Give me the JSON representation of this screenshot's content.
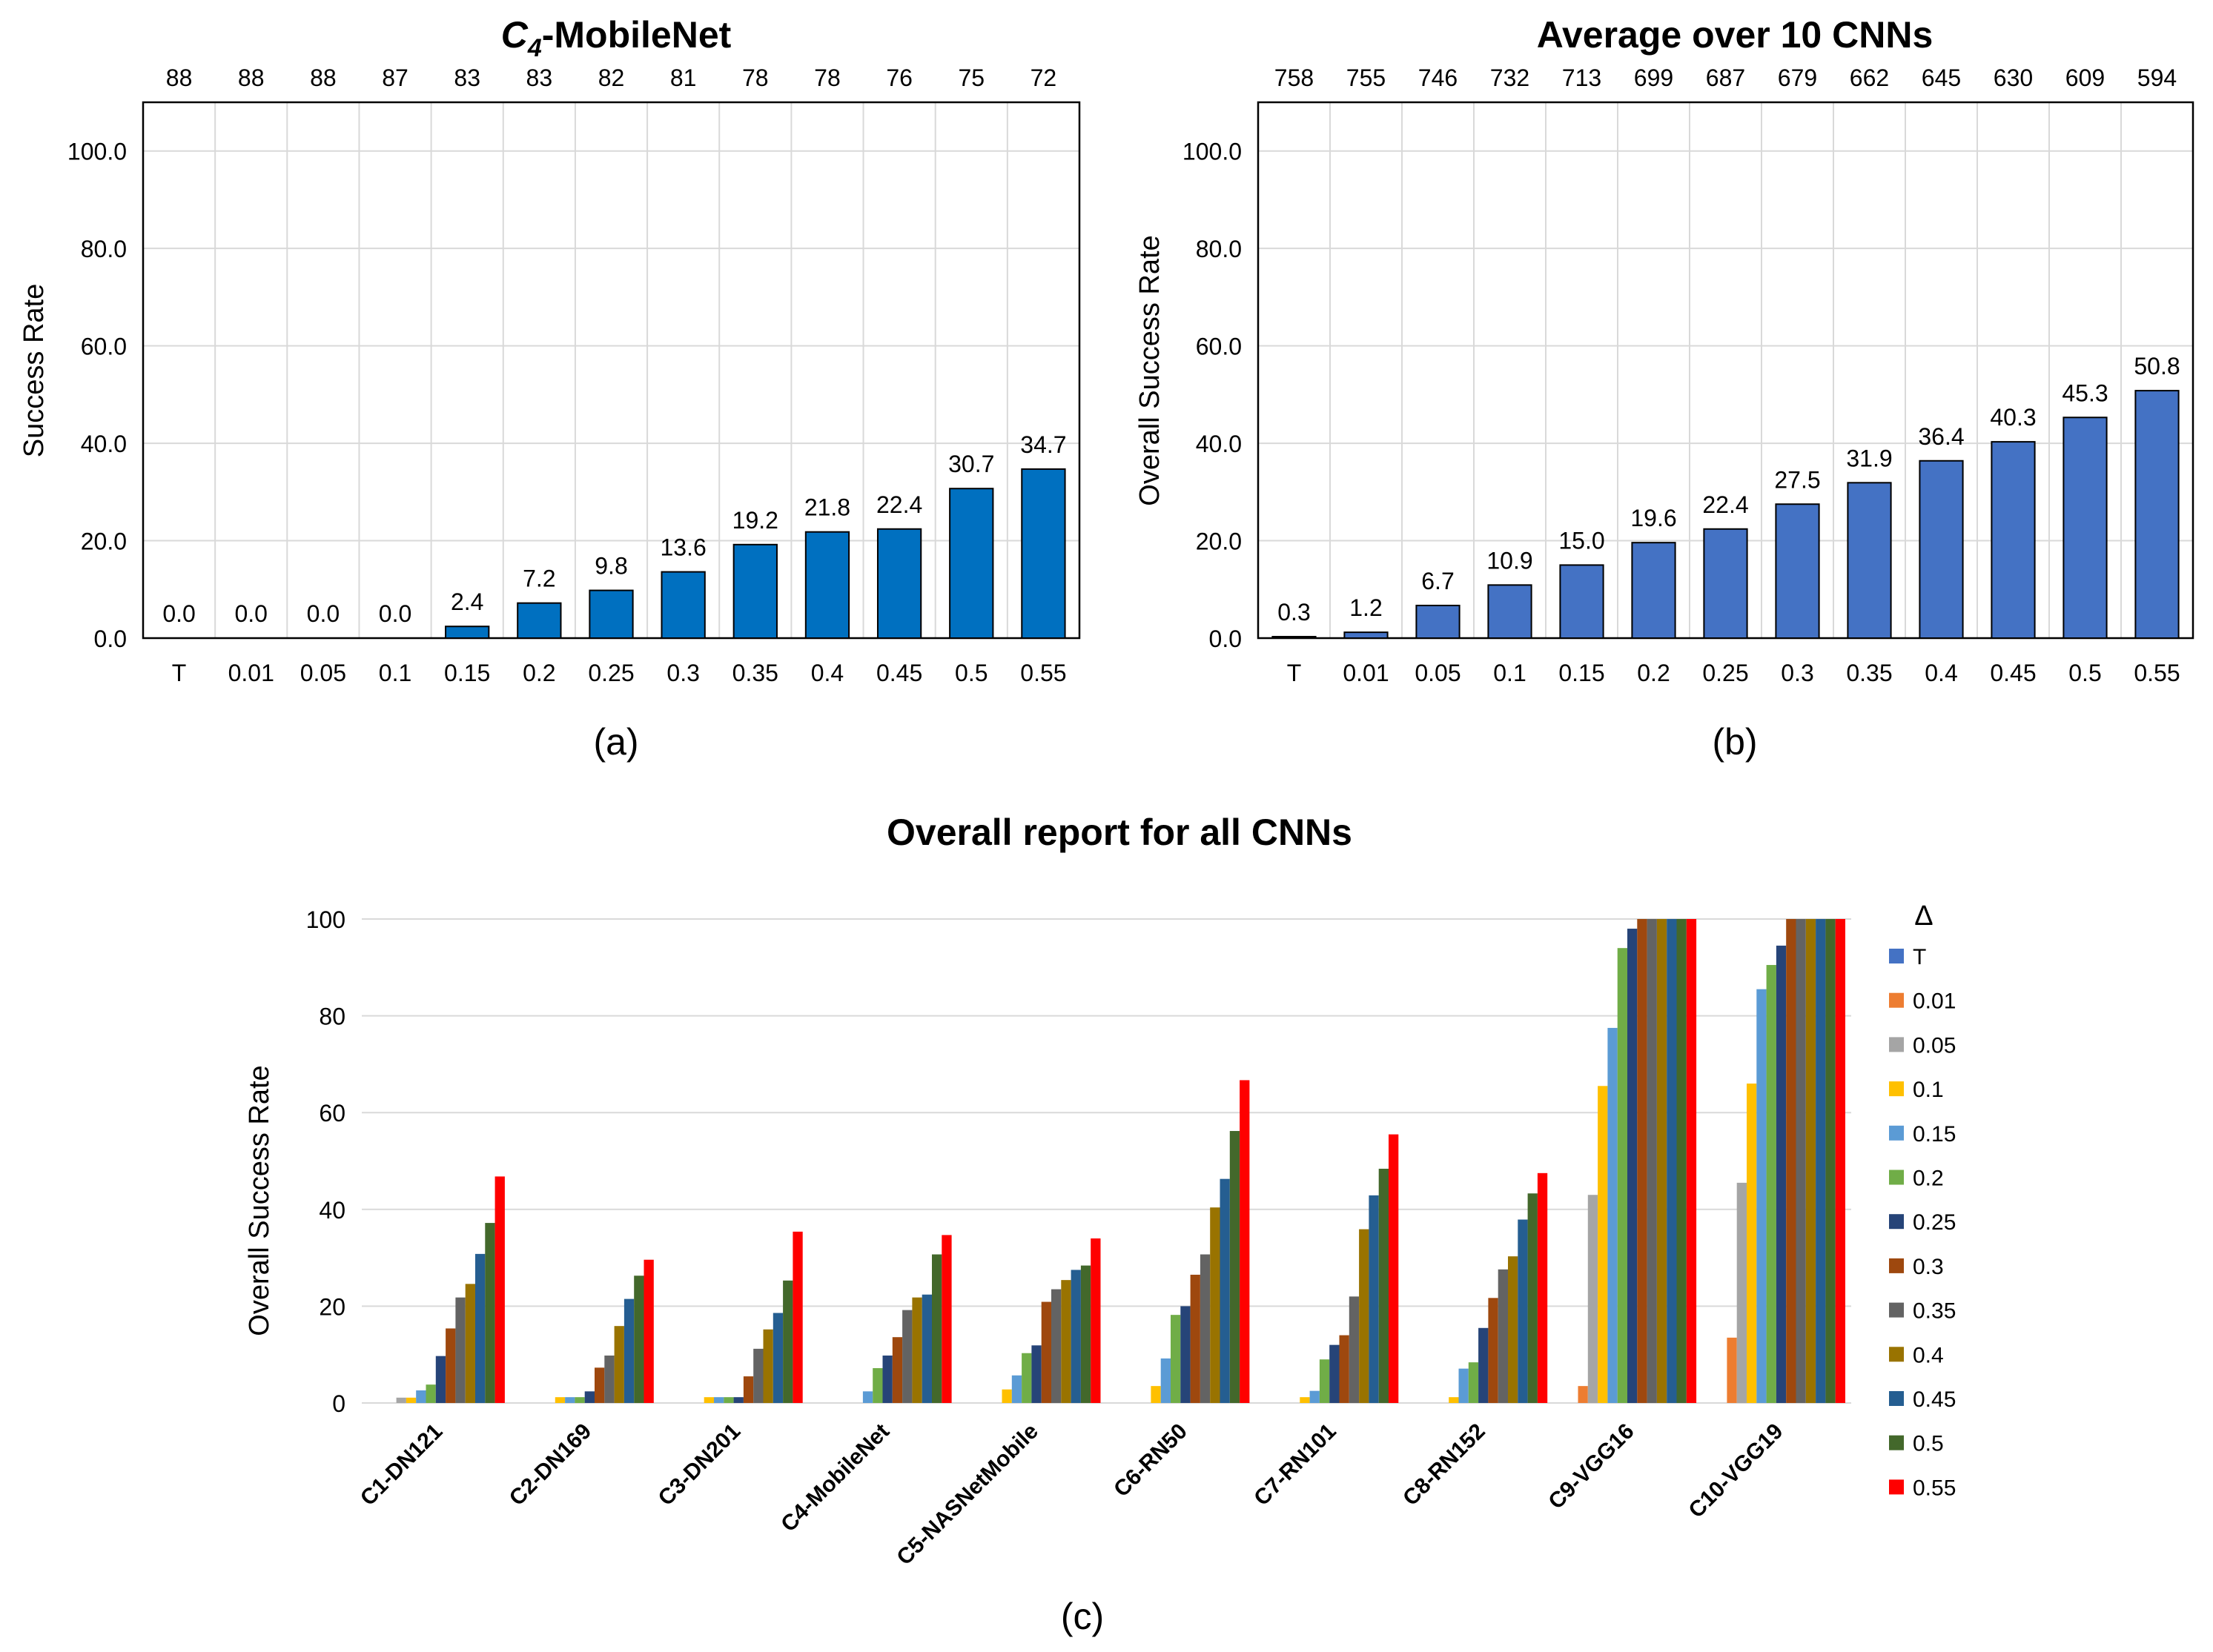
{
  "chart_data": [
    {
      "type": "bar",
      "panel": "(a)",
      "title": "C4-MobileNet",
      "title_parts": {
        "base": "C",
        "subscript": "4",
        "suffix": "-MobileNet"
      },
      "xlabel": "",
      "ylabel": "Success Rate",
      "ylim": [
        0,
        110
      ],
      "yticks": [
        "0.0",
        "20.0",
        "40.0",
        "60.0",
        "80.0",
        "100.0"
      ],
      "ytick_values": [
        0,
        20,
        40,
        60,
        80,
        100
      ],
      "categories": [
        "T",
        "0.01",
        "0.05",
        "0.1",
        "0.15",
        "0.2",
        "0.25",
        "0.3",
        "0.35",
        "0.4",
        "0.45",
        "0.5",
        "0.55"
      ],
      "values": [
        0.0,
        0.0,
        0.0,
        0.0,
        2.4,
        7.2,
        9.8,
        13.6,
        19.2,
        21.8,
        22.4,
        30.7,
        34.7
      ],
      "value_labels": [
        "0.0",
        "0.0",
        "0.0",
        "0.0",
        "2.4",
        "7.2",
        "9.8",
        "13.6",
        "19.2",
        "21.8",
        "22.4",
        "30.7",
        "34.7"
      ],
      "top_counts": [
        "88",
        "88",
        "88",
        "87",
        "83",
        "83",
        "82",
        "81",
        "78",
        "78",
        "76",
        "75",
        "72"
      ],
      "grid": true,
      "bar_color": "#0070C0",
      "caption": "(a)"
    },
    {
      "type": "bar",
      "panel": "(b)",
      "title": "Average over 10 CNNs",
      "xlabel": "",
      "ylabel": "Overall Success Rate",
      "ylim": [
        0,
        110
      ],
      "yticks": [
        "0.0",
        "20.0",
        "40.0",
        "60.0",
        "80.0",
        "100.0"
      ],
      "ytick_values": [
        0,
        20,
        40,
        60,
        80,
        100
      ],
      "categories": [
        "T",
        "0.01",
        "0.05",
        "0.1",
        "0.15",
        "0.2",
        "0.25",
        "0.3",
        "0.35",
        "0.4",
        "0.45",
        "0.5",
        "0.55"
      ],
      "values": [
        0.3,
        1.2,
        6.7,
        10.9,
        15.0,
        19.6,
        22.4,
        27.5,
        31.9,
        36.4,
        40.3,
        45.3,
        50.8
      ],
      "value_labels": [
        "0.3",
        "1.2",
        "6.7",
        "10.9",
        "15.0",
        "19.6",
        "22.4",
        "27.5",
        "31.9",
        "36.4",
        "40.3",
        "45.3",
        "50.8"
      ],
      "top_counts": [
        "758",
        "755",
        "746",
        "732",
        "713",
        "699",
        "687",
        "679",
        "662",
        "645",
        "630",
        "609",
        "594"
      ],
      "grid": true,
      "bar_color": "#4472C4",
      "caption": "(b)"
    },
    {
      "type": "bar",
      "panel": "(c)",
      "title": "Overall report for all CNNs",
      "xlabel": "",
      "ylabel": "Overall Success Rate",
      "ylim": [
        0,
        100
      ],
      "yticks": [
        "0",
        "20",
        "40",
        "60",
        "80",
        "100"
      ],
      "ytick_values": [
        0,
        20,
        40,
        60,
        80,
        100
      ],
      "legend_title": "Δ",
      "legend_position": "right",
      "categories": [
        "C1-DN121",
        "C2-DN169",
        "C3-DN201",
        "C4-MobileNet",
        "C5-NASNetMobile",
        "C6-RN50",
        "C7-RN101",
        "C8-RN152",
        "C9-VGG16",
        "C10-VGG19"
      ],
      "series": [
        {
          "name": "T",
          "color": "#4472C4",
          "values": [
            0,
            0,
            0,
            0,
            0,
            0,
            0,
            0,
            0,
            0
          ]
        },
        {
          "name": "0.01",
          "color": "#ED7D31",
          "values": [
            0,
            0,
            0,
            0,
            0,
            0,
            0,
            0,
            3.5,
            13.5
          ]
        },
        {
          "name": "0.05",
          "color": "#A5A5A5",
          "values": [
            1.1,
            0,
            0,
            0,
            0,
            0,
            0,
            0,
            43,
            45.5
          ]
        },
        {
          "name": "0.1",
          "color": "#FFC000",
          "values": [
            1.1,
            1.2,
            1.2,
            0,
            2.8,
            3.5,
            1.2,
            1.2,
            65.5,
            66
          ]
        },
        {
          "name": "0.15",
          "color": "#5B9BD5",
          "values": [
            2.6,
            1.2,
            1.2,
            2.4,
            5.7,
            9.2,
            2.5,
            7.1,
            77.5,
            85.5
          ]
        },
        {
          "name": "0.2",
          "color": "#70AD47",
          "values": [
            3.8,
            1.2,
            1.2,
            7.2,
            10.3,
            18.2,
            9.0,
            8.4,
            94,
            90.5
          ]
        },
        {
          "name": "0.25",
          "color": "#264478",
          "values": [
            9.7,
            2.4,
            1.2,
            9.8,
            11.9,
            20,
            12,
            15.5,
            98,
            94.5
          ]
        },
        {
          "name": "0.3",
          "color": "#9E480E",
          "values": [
            15.4,
            7.3,
            5.5,
            13.6,
            20.9,
            26.5,
            14,
            21.7,
            100,
            100
          ]
        },
        {
          "name": "0.35",
          "color": "#636363",
          "values": [
            21.8,
            9.8,
            11.2,
            19.2,
            23.5,
            30.7,
            22,
            27.6,
            100,
            100
          ]
        },
        {
          "name": "0.4",
          "color": "#997300",
          "values": [
            24.6,
            15.9,
            15.2,
            21.8,
            25.4,
            40.4,
            35.9,
            30.3,
            100,
            100
          ]
        },
        {
          "name": "0.45",
          "color": "#255E91",
          "values": [
            30.8,
            21.5,
            18.6,
            22.4,
            27.5,
            46.3,
            42.9,
            37.9,
            100,
            100
          ]
        },
        {
          "name": "0.5",
          "color": "#43682B",
          "values": [
            37.2,
            26.3,
            25.3,
            30.7,
            28.4,
            56.2,
            48.4,
            43.3,
            100,
            100
          ]
        },
        {
          "name": "0.55",
          "color": "#FF0000",
          "values": [
            46.8,
            29.6,
            35.4,
            34.7,
            34,
            66.7,
            55.5,
            47.5,
            100,
            100
          ]
        }
      ],
      "grid": true,
      "caption": "(c)"
    }
  ]
}
